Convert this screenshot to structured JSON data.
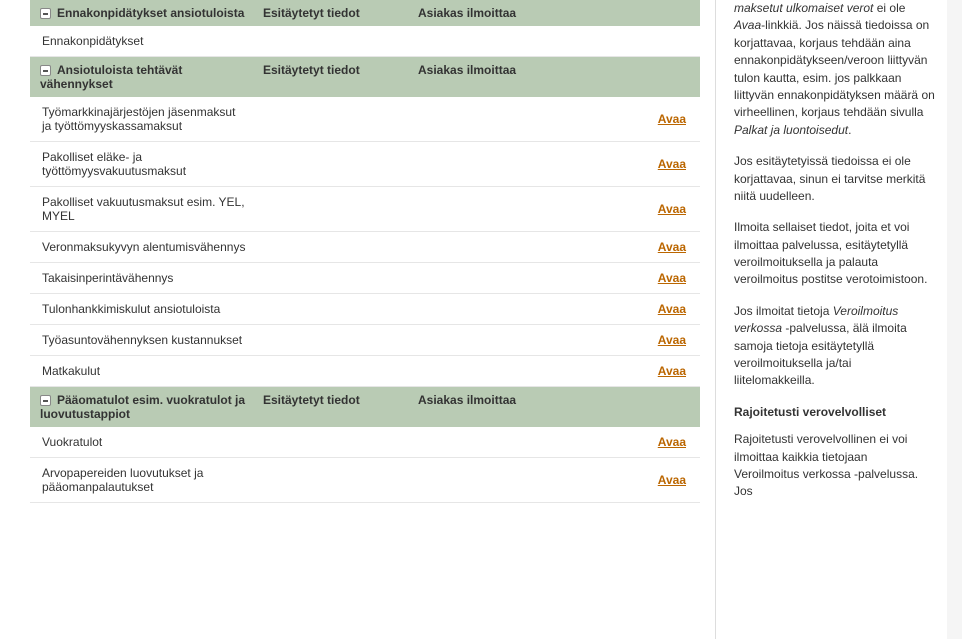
{
  "columns": {
    "prefilled": "Esitäytetyt tiedot",
    "client": "Asiakas ilmoittaa"
  },
  "avaa_label": "Avaa",
  "sections": [
    {
      "title": "Ennakonpidätykset ansiotuloista",
      "rows": [
        {
          "label": "Ennakonpidätykset",
          "avaa": false
        }
      ]
    },
    {
      "title": "Ansiotuloista tehtävät vähennykset",
      "rows": [
        {
          "label": "Työmarkkinajärjestöjen jäsenmaksut ja työttömyyskassamaksut",
          "avaa": true
        },
        {
          "label": "Pakolliset eläke- ja työttömyysvakuutusmaksut",
          "avaa": true
        },
        {
          "label": "Pakolliset vakuutusmaksut esim. YEL, MYEL",
          "avaa": true
        },
        {
          "label": "Veronmaksukyvyn alentumisvähennys",
          "avaa": true
        },
        {
          "label": "Takaisinperintävähennys",
          "avaa": true
        },
        {
          "label": "Tulonhankkimiskulut ansiotuloista",
          "avaa": true
        },
        {
          "label": "Työasuntovähennyksen kustannukset",
          "avaa": true
        },
        {
          "label": "Matkakulut",
          "avaa": true
        }
      ]
    },
    {
      "title": "Pääomatulot esim. vuokratulot ja luovutustappiot",
      "rows": [
        {
          "label": "Vuokratulot",
          "avaa": true
        },
        {
          "label": "Arvopapereiden luovutukset ja pääomanpalautukset",
          "avaa": true
        }
      ]
    }
  ],
  "sidebar": {
    "p1_pre": "maksetut ulkomaiset verot",
    "p1_rest_a": " ei ole ",
    "p1_avaa": "Avaa",
    "p1_rest_b": "-linkkiä. Jos näissä tiedoissa on korjattavaa, korjaus tehdään aina ennakonpidätykseen/veroon liittyvän tulon kautta, esim. jos palkkaan liittyvän ennakonpidätyksen määrä on virheellinen, korjaus tehdään sivulla ",
    "p1_palkat": "Palkat ja luontoisedut",
    "p1_end": ".",
    "p2": "Jos esitäytetyissä tiedoissa ei ole korjattavaa, sinun ei tarvitse merkitä niitä uudelleen.",
    "p3": "Ilmoita sellaiset tiedot, joita et voi ilmoittaa palvelussa, esitäytetyllä veroilmoituksella ja palauta veroilmoitus postitse verotoimistoon.",
    "p4_a": "Jos ilmoitat tietoja ",
    "p4_em": "Veroilmoitus verkossa",
    "p4_b": " -palvelussa, älä ilmoita samoja tietoja esitäytetyllä veroilmoituksella ja/tai liitelomakkeilla.",
    "heading": "Rajoitetusti verovelvolliset",
    "p5": "Rajoitetusti verovelvollinen ei voi ilmoittaa kaikkia tietojaan Veroilmoitus verkossa -palvelussa. Jos"
  },
  "colors": {
    "section_bg": "#b9cbb4",
    "link": "#bb6600",
    "border": "#e6e6e6"
  }
}
